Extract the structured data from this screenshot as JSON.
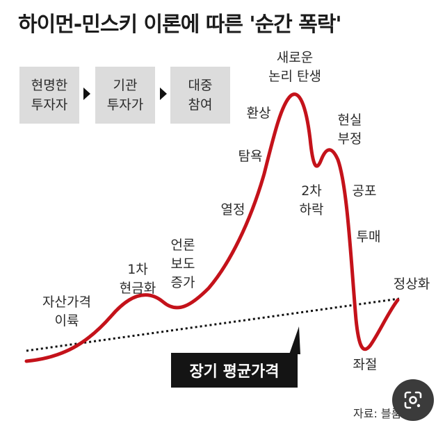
{
  "title": "하이먼-민스키 이론에 따른 '순간 폭락'",
  "stages": [
    {
      "label": "현명한\n투자자"
    },
    {
      "label": "기관\n투자가"
    },
    {
      "label": "대중\n참여"
    }
  ],
  "curve_labels": {
    "asset_profit": "자산가격\n이륙",
    "first_cash": "1차\n현금화",
    "media": "언론\n보도\n증가",
    "passion": "열정",
    "greed": "탐욕",
    "illusion": "환상",
    "new_logic": "새로운\n논리 탄생",
    "second_drop": "2차\n하락",
    "denial": "현실\n부정",
    "fear": "공포",
    "dump": "투매",
    "despair": "좌절",
    "normal": "정상화"
  },
  "average_price_label": "장기 평균가격",
  "source": "자료: 블룸버그",
  "colors": {
    "curve": "#c4121a",
    "box": "#dcdcdc",
    "avg_box": "#141414"
  },
  "icons": {
    "lens": "google-lens-icon"
  }
}
